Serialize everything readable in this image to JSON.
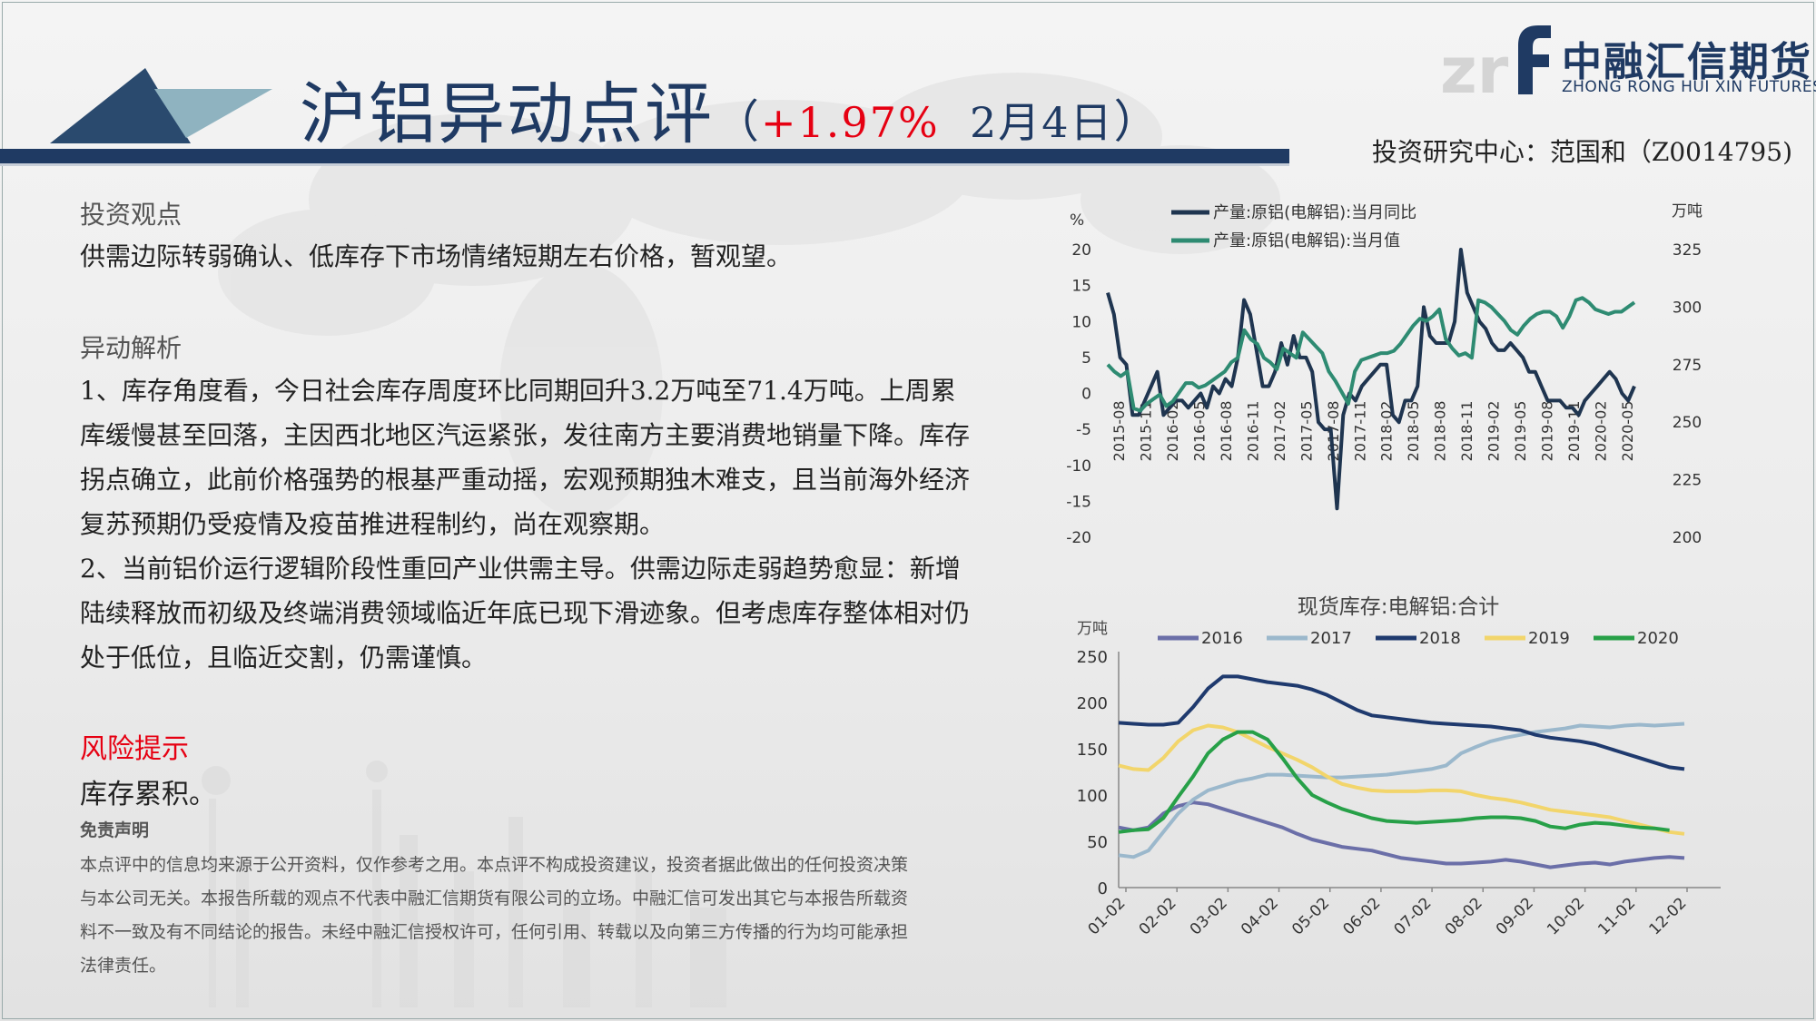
{
  "header": {
    "title_main": "沪铝异动点评",
    "title_open": "（",
    "title_pct": "+1.97%",
    "title_date": "2月4日",
    "title_close": "）",
    "logo_cn": "中融汇信期货",
    "logo_en": "ZHONG RONG HUI XIN FUTURES",
    "author": "投资研究中心：范国和（Z0014795)"
  },
  "content": {
    "view_heading": "投资观点",
    "view_text": "供需边际转弱确认、低库存下市场情绪短期左右价格，暂观望。",
    "analysis_heading": "异动解析",
    "analysis_p1": "1、库存角度看，今日社会库存周度环比同期回升3.2万吨至71.4万吨。上周累库缓慢甚至回落，主因西北地区汽运紧张，发往南方主要消费地销量下降。库存拐点确立，此前价格强势的根基严重动摇，宏观预期独木难支，且当前海外经济复苏预期仍受疫情及疫苗推进程制约，尚在观察期。",
    "analysis_p2": "2、当前铝价运行逻辑阶段性重回产业供需主导。供需边际走弱趋势愈显：新增陆续释放而初级及终端消费领域临近年底已现下滑迹象。但考虑库存整体相对仍处于低位，且临近交割，仍需谨慎。",
    "risk_heading": "风险提示",
    "risk_text": "库存累积。",
    "disclaimer_heading": "免责声明",
    "disclaimer_text": "本点评中的信息均来源于公开资料，仅作参考之用。本点评不构成投资建议，投资者据此做出的任何投资决策与本公司无关。本报告所载的观点不代表中融汇信期货有限公司的立场。中融汇信可发出其它与本报告所载资料不一致及有不同结论的报告。未经中融汇信授权许可，任何引用、转载以及向第三方传播的行为均可能承担法律责任。"
  },
  "chart_data": [
    {
      "type": "line",
      "title": "",
      "y_left_unit": "%",
      "y_right_unit": "万吨",
      "y_left_range": [
        -20,
        20
      ],
      "y_left_ticks": [
        -20,
        -15,
        -10,
        -5,
        0,
        5,
        10,
        15,
        20
      ],
      "y_right_range": [
        200,
        325
      ],
      "y_right_ticks": [
        200,
        225,
        250,
        275,
        300,
        325
      ],
      "x_labels": [
        "2015-08",
        "2015-11",
        "2016-02",
        "2016-05",
        "2016-08",
        "2016-11",
        "2017-02",
        "2017-05",
        "2017-08",
        "2017-11",
        "2018-02",
        "2018-05",
        "2018-08",
        "2018-11",
        "2019-02",
        "2019-05",
        "2019-08",
        "2019-11",
        "2020-02",
        "2020-05"
      ],
      "legend_position": "top",
      "series": [
        {
          "name": "产量:原铝(电解铝):当月同比",
          "axis": "left",
          "color": "#1f3550",
          "values": [
            14,
            11,
            5,
            4,
            -3,
            -3,
            -1,
            1,
            3,
            -3,
            -2,
            -1,
            -1,
            -2,
            -1,
            0,
            -2,
            1,
            0,
            2,
            1,
            5,
            13,
            11,
            6,
            1,
            1,
            3,
            7,
            4,
            8,
            5,
            5,
            3,
            -4,
            -5,
            -5,
            -16,
            -3,
            0,
            -1,
            1,
            2,
            3,
            4,
            4,
            -3,
            -4,
            -1,
            -1,
            1,
            12,
            8,
            7,
            7,
            7,
            10,
            20,
            14,
            12,
            10,
            9,
            7,
            6,
            6,
            7,
            6,
            5,
            3,
            3,
            1,
            -1,
            -1,
            -1,
            -2,
            -2,
            -3,
            -1,
            0,
            1,
            2,
            3,
            2,
            0,
            -1,
            1
          ]
        },
        {
          "name": "产量:原铝(电解铝):当月值",
          "axis": "right",
          "color": "#2e8b72",
          "values": [
            275,
            272,
            270,
            272,
            256,
            255,
            258,
            260,
            262,
            257,
            259,
            263,
            267,
            267,
            265,
            266,
            268,
            270,
            272,
            276,
            278,
            290,
            286,
            284,
            278,
            276,
            273,
            282,
            280,
            278,
            289,
            286,
            283,
            280,
            272,
            268,
            263,
            258,
            272,
            277,
            278,
            279,
            280,
            280,
            281,
            284,
            288,
            292,
            295,
            294,
            296,
            299,
            286,
            282,
            279,
            280,
            278,
            303,
            302,
            300,
            297,
            294,
            290,
            288,
            292,
            295,
            297,
            298,
            298,
            296,
            291,
            296,
            303,
            304,
            302,
            299,
            298,
            297,
            298,
            298,
            300,
            302
          ]
        }
      ]
    },
    {
      "type": "line",
      "title": "现货库存:电解铝:合计",
      "y_unit": "万吨",
      "ylim": [
        0,
        250
      ],
      "y_ticks": [
        0,
        50,
        100,
        150,
        200,
        250
      ],
      "x_labels": [
        "01-02",
        "02-02",
        "03-02",
        "04-02",
        "05-02",
        "06-02",
        "07-02",
        "08-02",
        "09-02",
        "10-02",
        "11-02",
        "12-02"
      ],
      "legend_position": "top",
      "series": [
        {
          "name": "2016",
          "color": "#6b6fa8",
          "values": [
            65,
            62,
            65,
            80,
            88,
            92,
            90,
            85,
            80,
            75,
            70,
            65,
            58,
            52,
            48,
            44,
            42,
            40,
            36,
            32,
            30,
            28,
            26,
            26,
            27,
            28,
            30,
            28,
            25,
            22,
            24,
            26,
            27,
            25,
            28,
            30,
            32,
            33,
            32
          ]
        },
        {
          "name": "2017",
          "color": "#9bb8cc",
          "values": [
            35,
            33,
            40,
            60,
            80,
            95,
            105,
            110,
            115,
            118,
            122,
            122,
            121,
            120,
            119,
            119,
            120,
            121,
            122,
            124,
            126,
            128,
            132,
            145,
            152,
            158,
            162,
            165,
            168,
            170,
            172,
            175,
            174,
            173,
            175,
            176,
            175,
            176,
            177
          ]
        },
        {
          "name": "2018",
          "color": "#1f3a6e",
          "values": [
            178,
            177,
            176,
            176,
            178,
            195,
            215,
            228,
            228,
            225,
            222,
            220,
            218,
            214,
            208,
            200,
            192,
            186,
            184,
            182,
            180,
            178,
            177,
            176,
            175,
            174,
            172,
            170,
            165,
            162,
            160,
            158,
            155,
            150,
            145,
            140,
            135,
            130,
            128
          ]
        },
        {
          "name": "2019",
          "color": "#f2d56b",
          "values": [
            132,
            128,
            127,
            140,
            158,
            170,
            175,
            173,
            168,
            160,
            152,
            145,
            138,
            130,
            120,
            112,
            108,
            105,
            104,
            104,
            104,
            105,
            105,
            104,
            100,
            97,
            95,
            92,
            88,
            84,
            82,
            80,
            78,
            76,
            72,
            68,
            64,
            60,
            58
          ]
        },
        {
          "name": "2020",
          "color": "#27a048",
          "values": [
            60,
            62,
            63,
            75,
            98,
            120,
            145,
            160,
            168,
            168,
            160,
            140,
            118,
            100,
            92,
            85,
            80,
            75,
            72,
            71,
            70,
            71,
            72,
            73,
            75,
            76,
            76,
            75,
            72,
            66,
            64,
            68,
            70,
            69,
            67,
            65,
            64,
            62
          ]
        }
      ]
    }
  ]
}
